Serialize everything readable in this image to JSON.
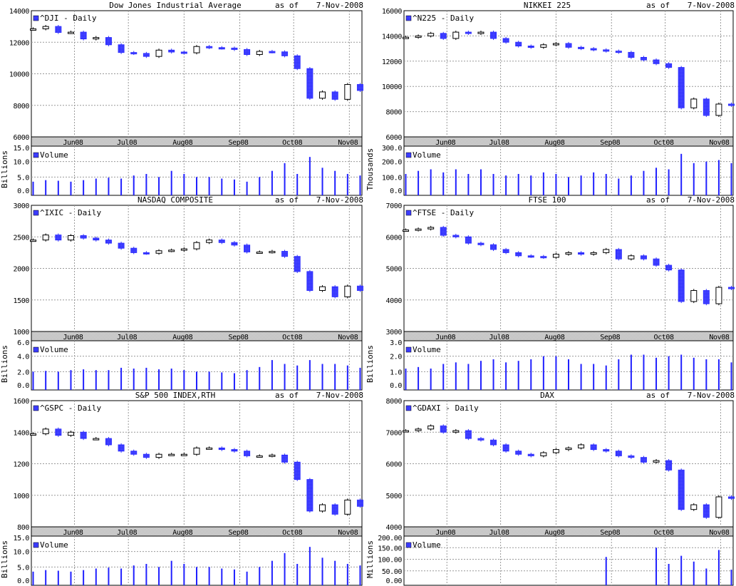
{
  "as_of_label": "as of",
  "as_of_date": "7-Nov-2008",
  "colors": {
    "down": "#3030ff",
    "up_fill": "#ffffff",
    "up_line": "#000000",
    "volume": "#2020ff",
    "grid": "#999999",
    "axis_strip": "#d0d0d0"
  },
  "chart_data": [
    {
      "type": "candlestick",
      "title": "Dow Jones Industrial Average",
      "legend": "^DJI - Daily",
      "xlim": [
        "2008-05-08",
        "2008-11-08"
      ],
      "month_ticks": [
        {
          "date": "2008-06-01",
          "label": "Jun08"
        },
        {
          "date": "2008-07-01",
          "label": "Jul08"
        },
        {
          "date": "2008-08-01",
          "label": "Aug08"
        },
        {
          "date": "2008-09-01",
          "label": "Sep08"
        },
        {
          "date": "2008-10-01",
          "label": "Oct08"
        },
        {
          "date": "2008-11-01",
          "label": "Nov08"
        }
      ],
      "ylim": [
        6000,
        14000
      ],
      "yticks": [
        6000,
        8000,
        10000,
        12000,
        14000
      ],
      "dates": [
        "2008-05-09",
        "2008-05-16",
        "2008-05-23",
        "2008-05-30",
        "2008-06-06",
        "2008-06-13",
        "2008-06-20",
        "2008-06-27",
        "2008-07-04",
        "2008-07-11",
        "2008-07-18",
        "2008-07-25",
        "2008-08-01",
        "2008-08-08",
        "2008-08-15",
        "2008-08-22",
        "2008-08-29",
        "2008-09-05",
        "2008-09-12",
        "2008-09-19",
        "2008-09-26",
        "2008-10-03",
        "2008-10-10",
        "2008-10-17",
        "2008-10-24",
        "2008-10-31",
        "2008-11-07"
      ],
      "close": [
        12850,
        13000,
        12620,
        12640,
        12210,
        12300,
        11840,
        11350,
        11290,
        11100,
        11500,
        11380,
        11330,
        11730,
        11660,
        11630,
        11540,
        11220,
        11420,
        11390,
        11140,
        10330,
        8450,
        8850,
        8380,
        9320,
        8940
      ],
      "volume": {
        "label": "Volume",
        "unit": "Billions",
        "ylim": [
          0,
          15
        ],
        "yticks": [
          "0.0",
          "5.0",
          "10.0",
          "15.0"
        ],
        "values": [
          3.5,
          4,
          3.8,
          3.5,
          4,
          4.5,
          4.8,
          4.5,
          5.5,
          6,
          5,
          7,
          6,
          5,
          5,
          4.5,
          4.2,
          3.5,
          5,
          7,
          9.5,
          6,
          11.5,
          8,
          7,
          6,
          5.5
        ]
      }
    },
    {
      "type": "candlestick",
      "title": "NIKKEI 225",
      "legend": "^N225 - Daily",
      "xlim": [
        "2008-05-08",
        "2008-11-08"
      ],
      "month_ticks": [
        {
          "date": "2008-06-01",
          "label": "Jun08"
        },
        {
          "date": "2008-07-01",
          "label": "Jul08"
        },
        {
          "date": "2008-08-01",
          "label": "Aug08"
        },
        {
          "date": "2008-09-01",
          "label": "Sep08"
        },
        {
          "date": "2008-10-01",
          "label": "Oct08"
        },
        {
          "date": "2008-11-01",
          "label": "Nov08"
        }
      ],
      "ylim": [
        6000,
        16000
      ],
      "yticks": [
        6000,
        8000,
        10000,
        12000,
        14000,
        16000
      ],
      "dates": [
        "2008-05-09",
        "2008-05-16",
        "2008-05-23",
        "2008-05-30",
        "2008-06-06",
        "2008-06-13",
        "2008-06-20",
        "2008-06-27",
        "2008-07-04",
        "2008-07-11",
        "2008-07-18",
        "2008-07-25",
        "2008-08-01",
        "2008-08-08",
        "2008-08-15",
        "2008-08-22",
        "2008-08-29",
        "2008-09-05",
        "2008-09-12",
        "2008-09-19",
        "2008-09-26",
        "2008-10-03",
        "2008-10-10",
        "2008-10-17",
        "2008-10-24",
        "2008-10-31",
        "2008-11-07"
      ],
      "close": [
        13900,
        14000,
        14200,
        13800,
        14300,
        14200,
        14300,
        13800,
        13500,
        13200,
        13100,
        13300,
        13400,
        13100,
        13000,
        12900,
        12800,
        12700,
        12300,
        12100,
        11800,
        11500,
        8300,
        9000,
        7700,
        8600,
        8500
      ],
      "volume": {
        "label": "Volume",
        "unit": "Thousands",
        "ylim": [
          0,
          300
        ],
        "yticks": [
          "0.0",
          "100.0",
          "200.0",
          "300.0"
        ],
        "values": [
          120,
          140,
          150,
          130,
          150,
          120,
          150,
          120,
          110,
          120,
          110,
          130,
          120,
          100,
          110,
          130,
          120,
          90,
          110,
          140,
          160,
          150,
          250,
          190,
          200,
          210,
          190
        ]
      }
    },
    {
      "type": "candlestick",
      "title": "NASDAQ COMPOSITE",
      "legend": "^IXIC - Daily",
      "xlim": [
        "2008-05-08",
        "2008-11-08"
      ],
      "month_ticks": [
        {
          "date": "2008-06-01",
          "label": "Jun08"
        },
        {
          "date": "2008-07-01",
          "label": "Jul08"
        },
        {
          "date": "2008-08-01",
          "label": "Aug08"
        },
        {
          "date": "2008-09-01",
          "label": "Sep08"
        },
        {
          "date": "2008-10-01",
          "label": "Oct08"
        },
        {
          "date": "2008-11-01",
          "label": "Nov08"
        }
      ],
      "ylim": [
        1000,
        3000
      ],
      "yticks": [
        1000,
        1500,
        2000,
        2500,
        3000
      ],
      "dates": [
        "2008-05-09",
        "2008-05-16",
        "2008-05-23",
        "2008-05-30",
        "2008-06-06",
        "2008-06-13",
        "2008-06-20",
        "2008-06-27",
        "2008-07-04",
        "2008-07-11",
        "2008-07-18",
        "2008-07-25",
        "2008-08-01",
        "2008-08-08",
        "2008-08-15",
        "2008-08-22",
        "2008-08-29",
        "2008-09-05",
        "2008-09-12",
        "2008-09-19",
        "2008-09-26",
        "2008-10-03",
        "2008-10-10",
        "2008-10-17",
        "2008-10-24",
        "2008-10-31",
        "2008-11-07"
      ],
      "close": [
        2450,
        2530,
        2450,
        2520,
        2480,
        2450,
        2400,
        2320,
        2250,
        2240,
        2280,
        2290,
        2310,
        2410,
        2450,
        2410,
        2370,
        2260,
        2260,
        2270,
        2190,
        1950,
        1650,
        1710,
        1550,
        1720,
        1650
      ],
      "volume": {
        "label": "Volume",
        "unit": "Billions",
        "ylim": [
          0,
          6
        ],
        "yticks": [
          "0.0",
          "2.0",
          "4.0",
          "6.0"
        ],
        "values": [
          2,
          2.1,
          2,
          2.2,
          2.3,
          2.2,
          2.2,
          2.5,
          2.4,
          2.5,
          2.3,
          2.4,
          2.2,
          2,
          2,
          1.9,
          1.8,
          2.2,
          2.6,
          3.5,
          3,
          2.8,
          3.5,
          3,
          3,
          2.8,
          2.5
        ]
      }
    },
    {
      "type": "candlestick",
      "title": "FTSE 100",
      "legend": "^FTSE - Daily",
      "xlim": [
        "2008-05-08",
        "2008-11-08"
      ],
      "month_ticks": [
        {
          "date": "2008-06-01",
          "label": "Jun08"
        },
        {
          "date": "2008-07-01",
          "label": "Jul08"
        },
        {
          "date": "2008-08-01",
          "label": "Aug08"
        },
        {
          "date": "2008-09-01",
          "label": "Sep08"
        },
        {
          "date": "2008-10-01",
          "label": "Oct08"
        },
        {
          "date": "2008-11-01",
          "label": "Nov08"
        }
      ],
      "ylim": [
        3000,
        7000
      ],
      "yticks": [
        3000,
        4000,
        5000,
        6000,
        7000
      ],
      "dates": [
        "2008-05-09",
        "2008-05-16",
        "2008-05-23",
        "2008-05-30",
        "2008-06-06",
        "2008-06-13",
        "2008-06-20",
        "2008-06-27",
        "2008-07-04",
        "2008-07-11",
        "2008-07-18",
        "2008-07-25",
        "2008-08-01",
        "2008-08-08",
        "2008-08-15",
        "2008-08-22",
        "2008-08-29",
        "2008-09-05",
        "2008-09-12",
        "2008-09-19",
        "2008-09-26",
        "2008-10-03",
        "2008-10-10",
        "2008-10-17",
        "2008-10-24",
        "2008-10-31",
        "2008-11-07"
      ],
      "close": [
        6220,
        6250,
        6300,
        6050,
        6000,
        5800,
        5750,
        5600,
        5500,
        5400,
        5380,
        5350,
        5450,
        5500,
        5450,
        5500,
        5600,
        5300,
        5400,
        5300,
        5100,
        4950,
        3950,
        4300,
        3880,
        4400,
        4360
      ],
      "volume": {
        "label": "Volume",
        "unit": "Billions",
        "ylim": [
          0,
          3
        ],
        "yticks": [
          "0.0",
          "1.0",
          "2.0",
          "3.0"
        ],
        "values": [
          1.2,
          1.3,
          1.2,
          1.5,
          1.6,
          1.5,
          1.7,
          1.8,
          1.6,
          1.7,
          1.8,
          2,
          2,
          1.8,
          1.5,
          1.5,
          1.4,
          1.8,
          2.1,
          2.1,
          1.9,
          2,
          2.1,
          1.9,
          1.8,
          1.8,
          1.6
        ]
      }
    },
    {
      "type": "candlestick",
      "title": "S&P 500 INDEX,RTH",
      "legend": "^GSPC - Daily",
      "xlim": [
        "2008-05-08",
        "2008-11-08"
      ],
      "month_ticks": [
        {
          "date": "2008-06-01",
          "label": "Jun08"
        },
        {
          "date": "2008-07-01",
          "label": "Jul08"
        },
        {
          "date": "2008-08-01",
          "label": "Aug08"
        },
        {
          "date": "2008-09-01",
          "label": "Sep08"
        },
        {
          "date": "2008-10-01",
          "label": "Oct08"
        },
        {
          "date": "2008-11-01",
          "label": "Nov08"
        }
      ],
      "ylim": [
        800,
        1600
      ],
      "yticks": [
        800,
        1000,
        1200,
        1400,
        1600
      ],
      "dates": [
        "2008-05-09",
        "2008-05-16",
        "2008-05-23",
        "2008-05-30",
        "2008-06-06",
        "2008-06-13",
        "2008-06-20",
        "2008-06-27",
        "2008-07-04",
        "2008-07-11",
        "2008-07-18",
        "2008-07-25",
        "2008-08-01",
        "2008-08-08",
        "2008-08-15",
        "2008-08-22",
        "2008-08-29",
        "2008-09-05",
        "2008-09-12",
        "2008-09-19",
        "2008-09-26",
        "2008-10-03",
        "2008-10-10",
        "2008-10-17",
        "2008-10-24",
        "2008-10-31",
        "2008-11-07"
      ],
      "close": [
        1390,
        1420,
        1380,
        1400,
        1360,
        1360,
        1320,
        1280,
        1260,
        1240,
        1260,
        1260,
        1260,
        1300,
        1300,
        1290,
        1280,
        1250,
        1250,
        1255,
        1210,
        1100,
        900,
        940,
        880,
        970,
        930
      ],
      "volume": {
        "label": "Volume",
        "unit": "Billions",
        "ylim": [
          0,
          15
        ],
        "yticks": [
          "0.0",
          "5.0",
          "10.0",
          "15.0"
        ],
        "values": [
          3.5,
          4,
          3.8,
          3.5,
          4,
          4.5,
          4.8,
          4.5,
          5.5,
          6,
          5,
          7,
          6,
          5,
          5,
          4.5,
          4.2,
          3.5,
          5,
          7,
          9.5,
          6,
          11.5,
          8,
          7,
          6,
          5.5
        ]
      }
    },
    {
      "type": "candlestick",
      "title": "DAX",
      "legend": "^GDAXI - Daily",
      "xlim": [
        "2008-05-08",
        "2008-11-08"
      ],
      "month_ticks": [
        {
          "date": "2008-06-01",
          "label": "Jun08"
        },
        {
          "date": "2008-07-01",
          "label": "Jul08"
        },
        {
          "date": "2008-08-01",
          "label": "Aug08"
        },
        {
          "date": "2008-09-01",
          "label": "Sep08"
        },
        {
          "date": "2008-10-01",
          "label": "Oct08"
        },
        {
          "date": "2008-11-01",
          "label": "Nov08"
        }
      ],
      "ylim": [
        4000,
        8000
      ],
      "yticks": [
        4000,
        5000,
        6000,
        7000,
        8000
      ],
      "dates": [
        "2008-05-09",
        "2008-05-16",
        "2008-05-23",
        "2008-05-30",
        "2008-06-06",
        "2008-06-13",
        "2008-06-20",
        "2008-06-27",
        "2008-07-04",
        "2008-07-11",
        "2008-07-18",
        "2008-07-25",
        "2008-08-01",
        "2008-08-08",
        "2008-08-15",
        "2008-08-22",
        "2008-08-29",
        "2008-09-05",
        "2008-09-12",
        "2008-09-19",
        "2008-09-26",
        "2008-10-03",
        "2008-10-10",
        "2008-10-17",
        "2008-10-24",
        "2008-10-31",
        "2008-11-07"
      ],
      "close": [
        7050,
        7100,
        7200,
        7000,
        7050,
        6800,
        6750,
        6600,
        6400,
        6300,
        6250,
        6350,
        6450,
        6500,
        6600,
        6450,
        6400,
        6250,
        6200,
        6050,
        6100,
        5800,
        4550,
        4700,
        4300,
        4950,
        4900
      ],
      "volume": {
        "label": "Volume",
        "unit": "Millions",
        "ylim": [
          0,
          200
        ],
        "yticks": [
          "0.00",
          "50.00",
          "100.00",
          "150.00",
          "200.00"
        ],
        "values": [
          0,
          0,
          0,
          0,
          0,
          0,
          0,
          0,
          0,
          0,
          0,
          0,
          0,
          0,
          0,
          0,
          110,
          0,
          0,
          0,
          150,
          80,
          115,
          90,
          60,
          140,
          55
        ]
      }
    }
  ]
}
